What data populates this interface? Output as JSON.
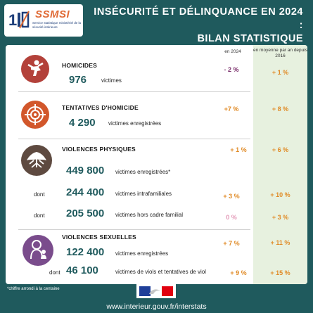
{
  "header": {
    "logo_name": "SSMSI",
    "logo_subtitle": "Service statistique ministériel de la sécurité intérieure",
    "title_line1": "INSÉCURITÉ ET DÉLINQUANCE EN 2024 :",
    "title_line2": "BILAN STATISTIQUE"
  },
  "columns": {
    "year": "en 2024",
    "average": "en moyenne par an depuis 2016"
  },
  "sections": {
    "homicides": {
      "title": "HOMICIDES",
      "value": "976",
      "label": "victimes",
      "change": "- 2 %",
      "avg": "+ 1 %"
    },
    "tentatives": {
      "title": "TENTATIVES D'HOMICIDE",
      "value": "4 290",
      "label": "victimes enregistrées",
      "change": "+7 %",
      "avg": "+ 8 %"
    },
    "physiques": {
      "title": "VIOLENCES PHYSIQUES",
      "change": "+ 1 %",
      "avg": "+ 6 %",
      "rows": [
        {
          "prefix": "",
          "value": "449 800",
          "label": "victimes enregistrées*",
          "change": "",
          "avg": ""
        },
        {
          "prefix": "dont",
          "value": "244 400",
          "label": "victimes intrafamiliales",
          "change": "+ 3 %",
          "avg": "+ 10 %"
        },
        {
          "prefix": "dont",
          "value": "205 500",
          "label": "victimes hors cadre familial",
          "change": "0 %",
          "avg": "+ 3 %"
        }
      ]
    },
    "sexuelles": {
      "title": "VIOLENCES SEXUELLES",
      "rows": [
        {
          "prefix": "",
          "value": "122 400",
          "label": "victimes enregistrées",
          "change": "+ 7 %",
          "avg": "+ 11 %"
        },
        {
          "prefix": "dont",
          "value": "46 100",
          "label": "victimes de viols et tentatives de viol",
          "change": "+ 9 %",
          "avg": "+ 15 %"
        }
      ]
    }
  },
  "footer": {
    "note": "*chiffre arrondi à la centaine",
    "url": "www.interieur.gouv.fr/interstats"
  },
  "colors": {
    "background": "#1f5a5d",
    "homicides_icon": "#b3413a",
    "tentatives_icon": "#d2572b",
    "physiques_icon": "#5e4a40",
    "sexuelles_icon": "#7a4c8c",
    "negative": "#7a2e6b",
    "positive": "#e08a25",
    "neutral": "#e39ab8",
    "avg_column": "#e7f1df"
  },
  "icons": [
    "fighting-figure-icon",
    "target-crosshair-icon",
    "tree-roots-icon",
    "woman-with-child-icon",
    "french-flag-icon"
  ]
}
